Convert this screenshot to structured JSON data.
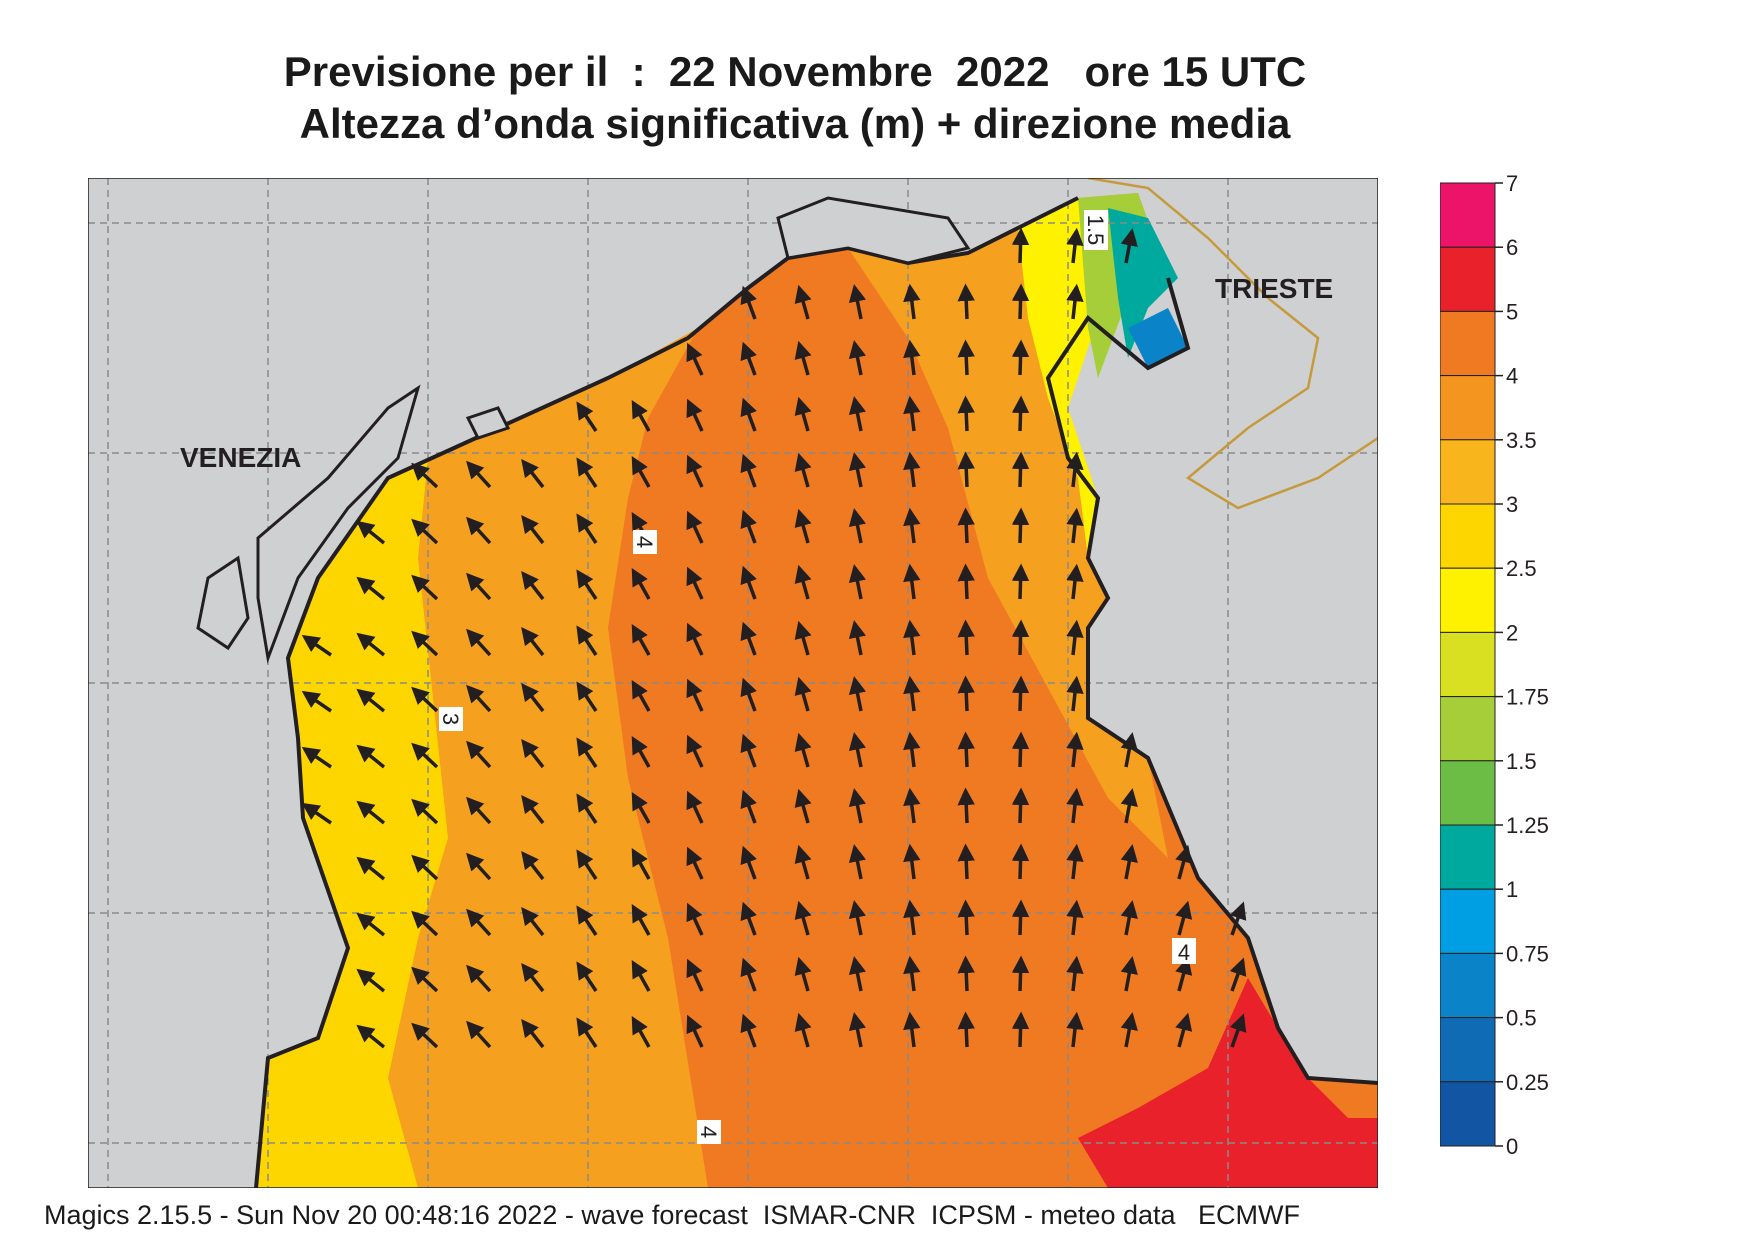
{
  "title_line1": "Previsione per il  :  22 Novembre  2022   ore 15 UTC",
  "title_line2": "Altezza d’onda significativa (m) + direzione media",
  "footer": "Magics 2.15.5 - Sun Nov 20 00:48:16 2022 - wave forecast  ISMAR-CNR  ICPSM - meteo data   ECMWF",
  "place_labels": {
    "venezia": "VENEZIA",
    "trieste": "TRIESTE"
  },
  "contour_labels": [
    "1.5",
    "4",
    "3",
    "4",
    "4"
  ],
  "legend": {
    "ticks": [
      "7",
      "6",
      "5",
      "4",
      "3.5",
      "3",
      "2.5",
      "2",
      "1.75",
      "1.5",
      "1.25",
      "1",
      "0.75",
      "0.5",
      "0.25",
      "0"
    ],
    "colors": [
      "#ec1469",
      "#e8212a",
      "#f07a22",
      "#f4951f",
      "#f9b51c",
      "#fdd600",
      "#fff200",
      "#d9e021",
      "#a6ce39",
      "#6cbd45",
      "#00a99d",
      "#009fe3",
      "#0a83c8",
      "#0f6bb4",
      "#1256a3"
    ]
  },
  "arrow_direction": "north-west",
  "colors": {
    "land": "#cfd0d2",
    "sea_orange": "#f07a22",
    "sea_light_orange": "#f6a020",
    "sea_yellow": "#fdd600",
    "coastline": "#231f20",
    "border": "#c59a3c",
    "grid": "#8a8a8a"
  }
}
